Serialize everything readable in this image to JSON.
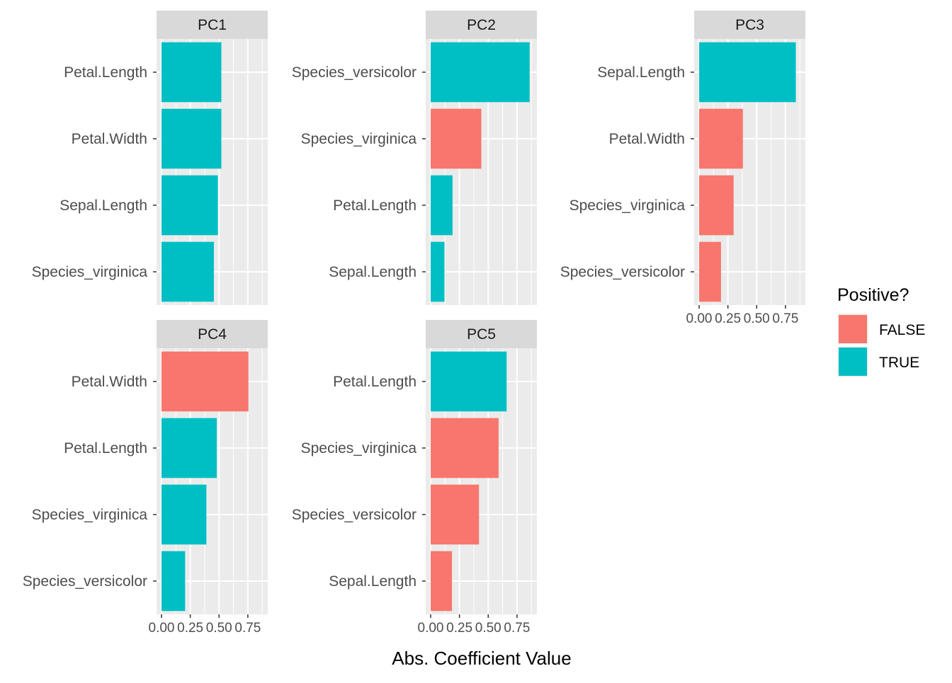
{
  "chart_data": {
    "type": "bar",
    "orientation": "horizontal",
    "xlabel": "Abs. Coefficient Value",
    "ylabel": "",
    "xlim": [
      0,
      0.88
    ],
    "x_ticks": [
      "0.00",
      "0.25",
      "0.50",
      "0.75"
    ],
    "x_tick_values": [
      0,
      0.25,
      0.5,
      0.75
    ],
    "legend": {
      "title": "Positive?",
      "placement": "right",
      "entries": [
        {
          "label": "FALSE",
          "color": "#F8766D"
        },
        {
          "label": "TRUE",
          "color": "#00BFC4"
        }
      ]
    },
    "colors": {
      "FALSE": "#F8766D",
      "TRUE": "#00BFC4"
    },
    "panels": [
      {
        "title": "PC1",
        "categories": [
          "Petal.Length",
          "Petal.Width",
          "Sepal.Length",
          "Species_virginica"
        ],
        "values": [
          0.52,
          0.52,
          0.49,
          0.455
        ],
        "positive": [
          true,
          true,
          true,
          true
        ]
      },
      {
        "title": "PC2",
        "categories": [
          "Species_versicolor",
          "Species_virginica",
          "Petal.Length",
          "Sepal.Length"
        ],
        "values": [
          0.86,
          0.44,
          0.19,
          0.12
        ],
        "positive": [
          true,
          false,
          true,
          true
        ]
      },
      {
        "title": "PC3",
        "categories": [
          "Sepal.Length",
          "Petal.Width",
          "Species_virginica",
          "Species_versicolor"
        ],
        "values": [
          0.84,
          0.38,
          0.3,
          0.19
        ],
        "positive": [
          true,
          false,
          false,
          false
        ]
      },
      {
        "title": "PC4",
        "categories": [
          "Petal.Width",
          "Petal.Length",
          "Species_virginica",
          "Species_versicolor"
        ],
        "values": [
          0.755,
          0.48,
          0.39,
          0.205
        ],
        "positive": [
          false,
          true,
          true,
          true
        ]
      },
      {
        "title": "PC5",
        "categories": [
          "Petal.Length",
          "Species_virginica",
          "Species_versicolor",
          "Sepal.Length"
        ],
        "values": [
          0.66,
          0.59,
          0.42,
          0.185
        ],
        "positive": [
          true,
          false,
          false,
          false
        ]
      }
    ]
  }
}
